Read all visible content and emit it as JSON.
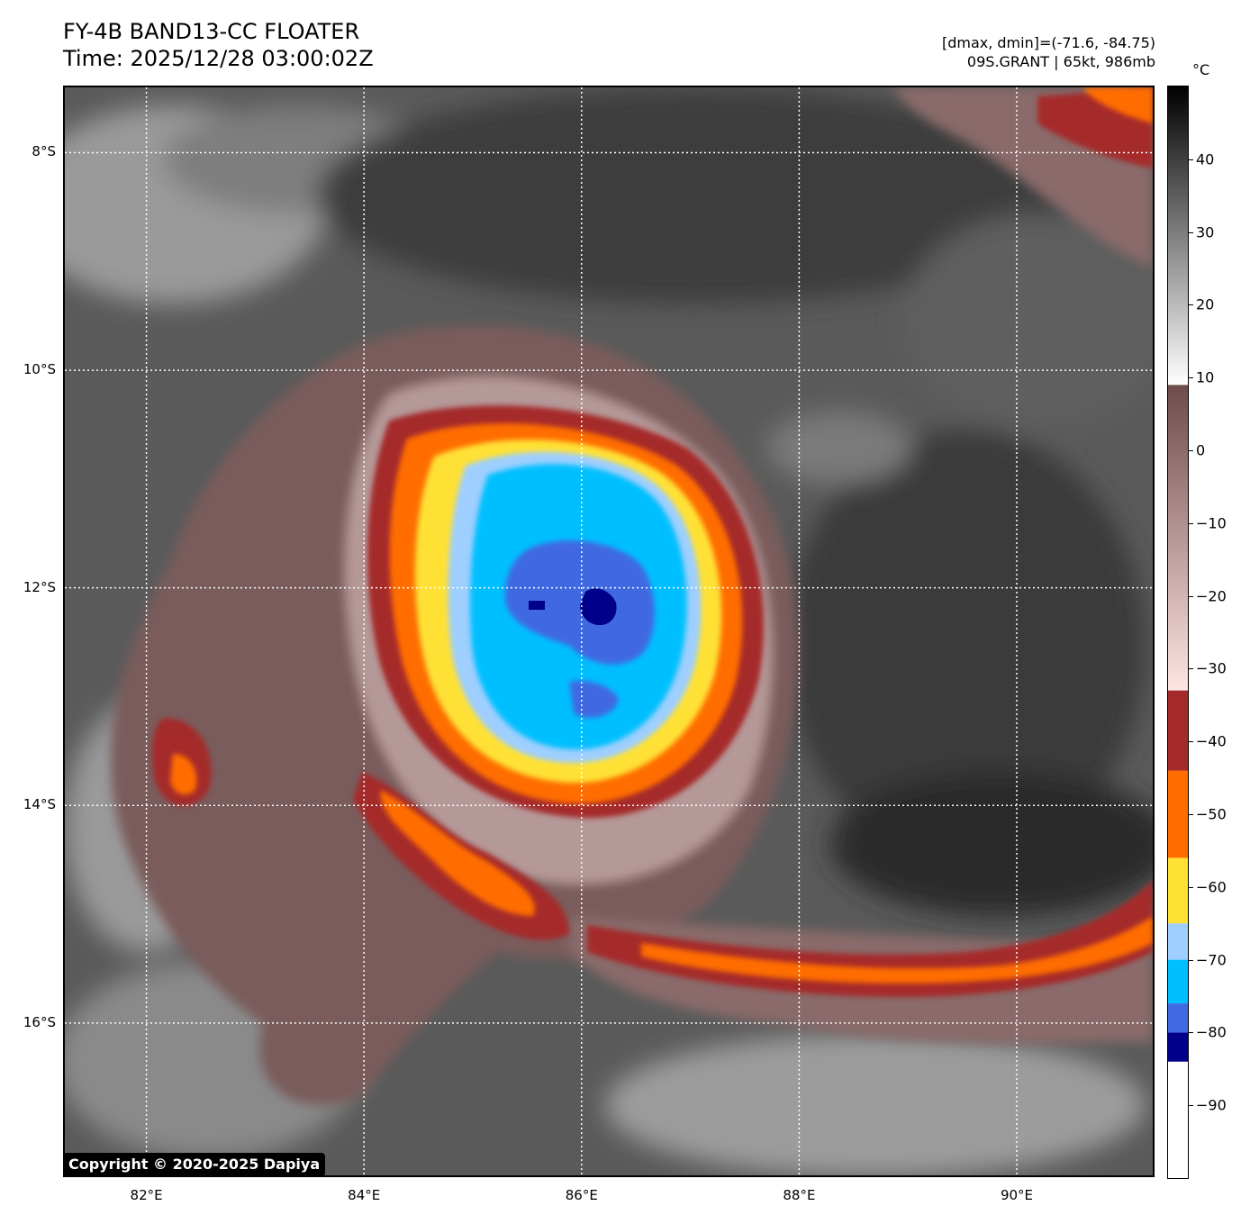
{
  "title": {
    "line1": "FY-4B BAND13-CC FLOATER",
    "line2": "Time: 2025/12/28 03:00:02Z"
  },
  "info": {
    "line1": "[dmax, dmin]=(-71.6, -84.75)",
    "line2": "09S.GRANT | 65kt, 986mb"
  },
  "map": {
    "lat_ticks": [
      "8°S",
      "10°S",
      "12°S",
      "14°S",
      "16°S"
    ],
    "lon_ticks": [
      "82°E",
      "84°E",
      "86°E",
      "88°E",
      "90°E"
    ],
    "lat_values": [
      -8,
      -10,
      -12,
      -14,
      -16
    ],
    "lon_values": [
      82,
      84,
      86,
      88,
      90
    ],
    "extent": {
      "lon_min": 81.25,
      "lon_max": 91.25,
      "lat_max": -7.4,
      "lat_min": -17.4
    },
    "storm_center": {
      "lon": 86.1,
      "lat": -12.25
    }
  },
  "colorbar": {
    "unit": "°C",
    "range": [
      -100,
      50
    ],
    "tick_values": [
      40,
      30,
      20,
      10,
      0,
      -10,
      -20,
      -30,
      -40,
      -50,
      -60,
      -70,
      -80,
      -90
    ],
    "tick_labels": [
      "40",
      "30",
      "20",
      "10",
      "0",
      "−10",
      "−20",
      "−30",
      "−40",
      "−50",
      "−60",
      "−70",
      "−80",
      "−90"
    ],
    "segments": [
      {
        "from": -100,
        "to": -84,
        "color": "#ffffff"
      },
      {
        "from": -84,
        "to": -80,
        "color": "#00008b"
      },
      {
        "from": -80,
        "to": -76,
        "color": "#4169e1"
      },
      {
        "from": -76,
        "to": -70,
        "color": "#00bfff"
      },
      {
        "from": -70,
        "to": -65,
        "color": "#9ecfff"
      },
      {
        "from": -65,
        "to": -56,
        "color": "#ffe135"
      },
      {
        "from": -56,
        "to": -44,
        "color": "#ff6d00"
      },
      {
        "from": -44,
        "to": -33,
        "color": "#a52a2a"
      }
    ],
    "gradients": [
      {
        "from": -33,
        "to": 9,
        "stops": [
          "#ffe4e4",
          "#6e4a4a"
        ]
      },
      {
        "from": 9,
        "to": 50,
        "stops": [
          "#ffffff",
          "#000000"
        ]
      }
    ]
  },
  "colors": {
    "cloud_gray": "#4a4a4a",
    "eye_core": "#00008b",
    "cdo_blue": "#00bfff",
    "outer_ring": "#ff6d00"
  },
  "copyright": "Copyright © 2020-2025 Dapiya"
}
